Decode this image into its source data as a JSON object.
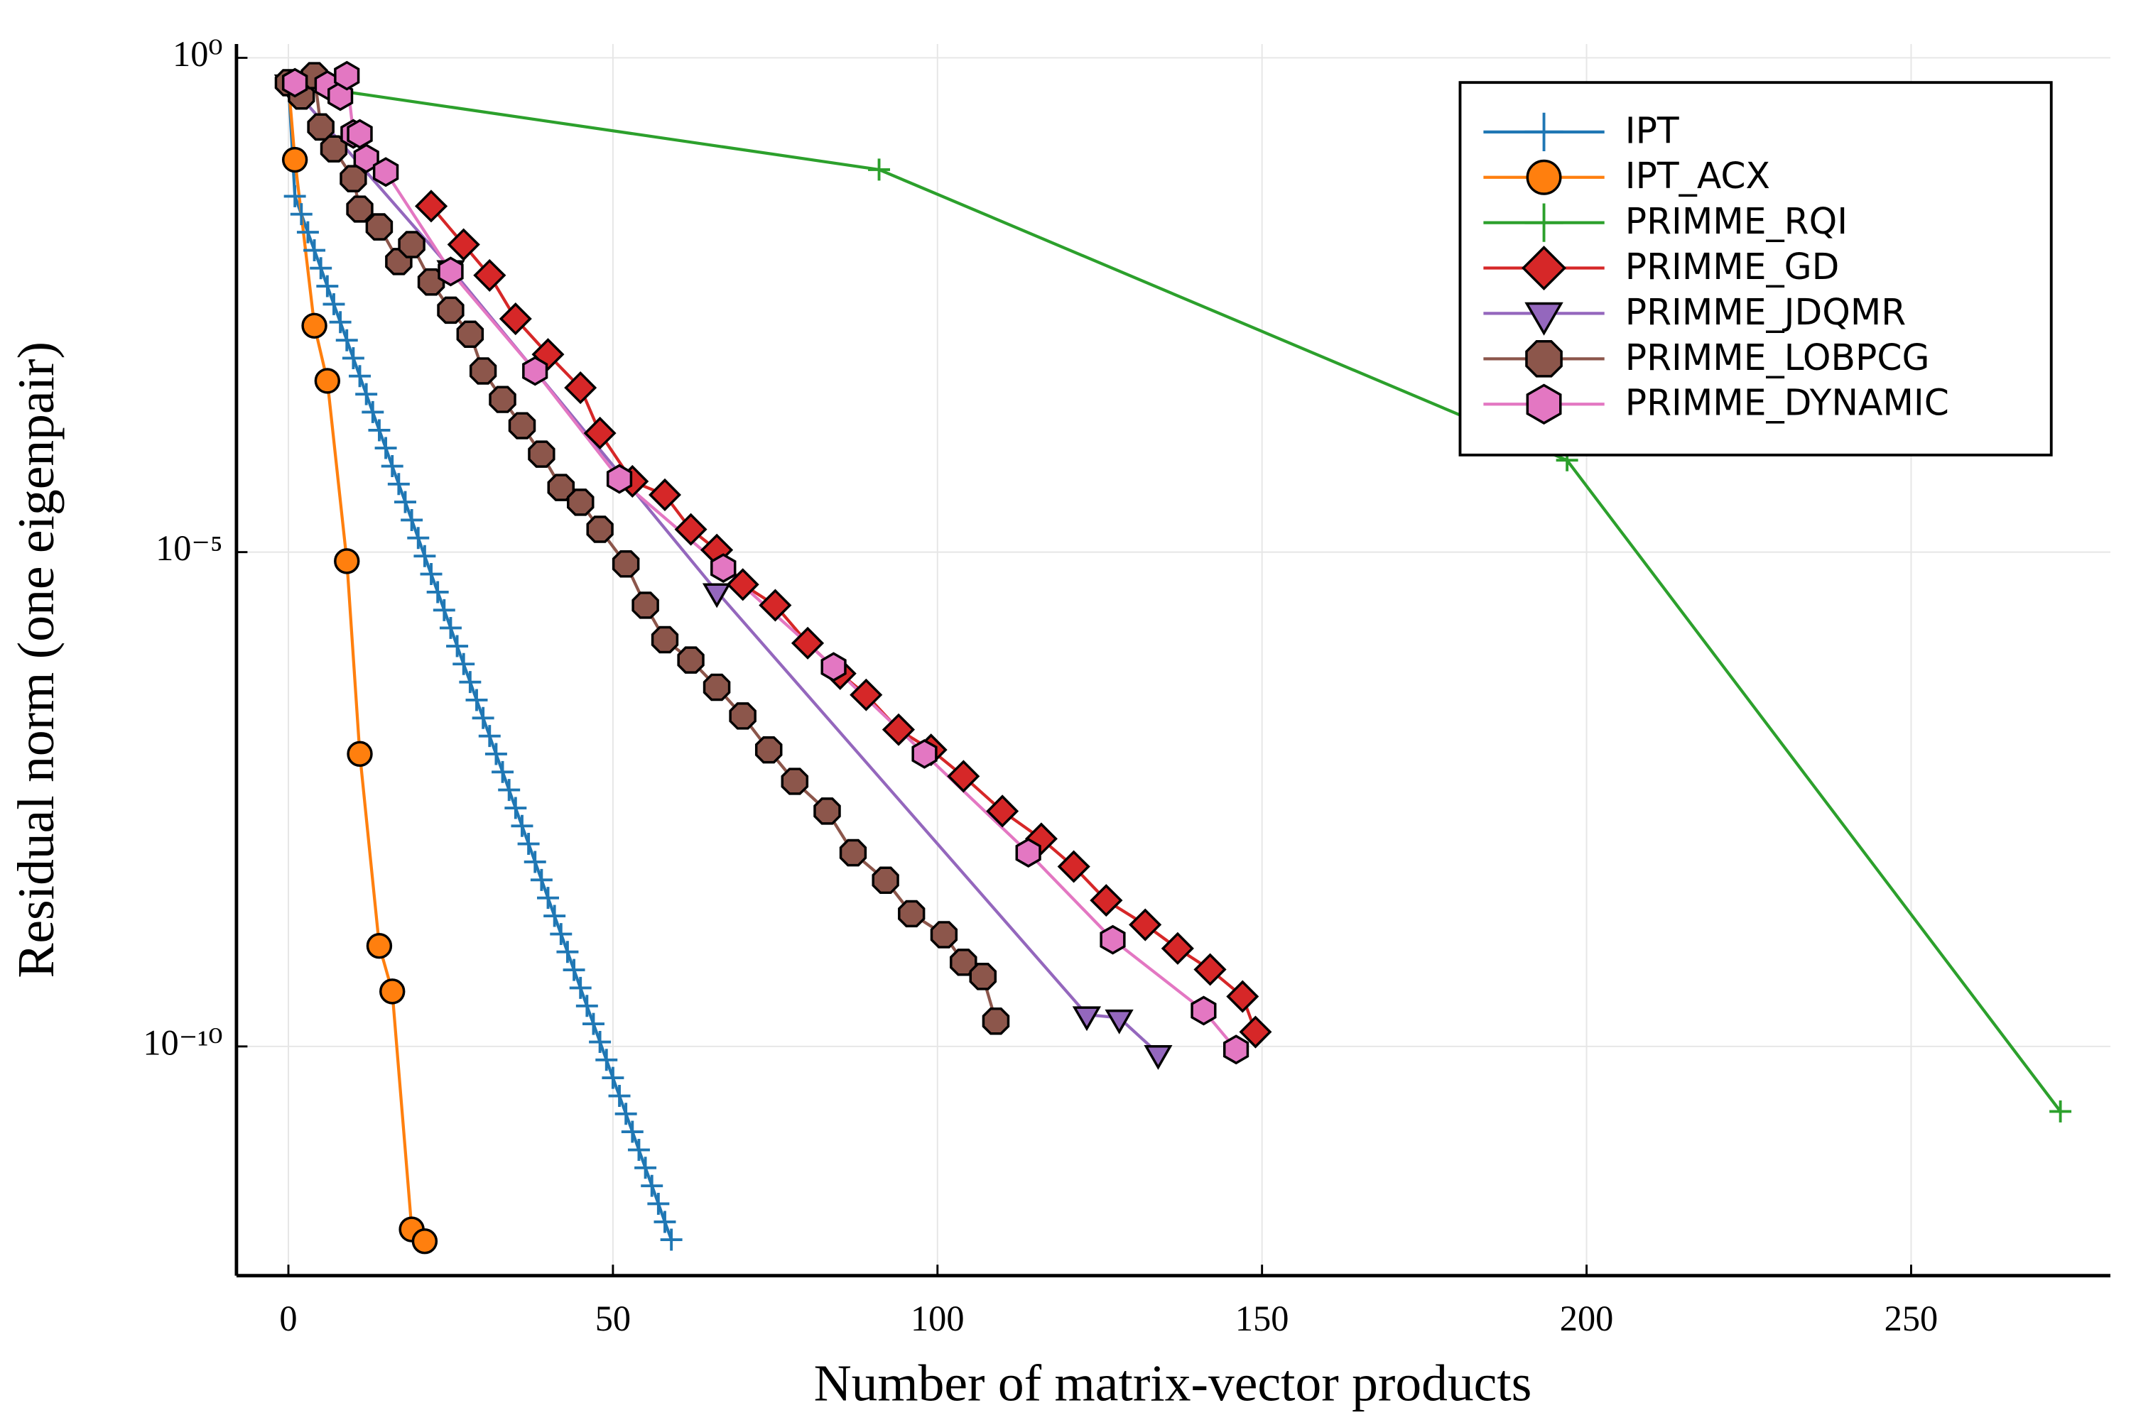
{
  "chart_data": {
    "type": "line",
    "x_label": "Number of matrix-vector products",
    "y_label": "Residual norm (one eigenpair)",
    "log_y": true,
    "grid": true,
    "legend": "top right",
    "xlim": [
      -8,
      280.7
    ],
    "xticks": [
      0,
      50,
      100,
      150,
      200,
      250
    ],
    "ylim": [
      4.8e-13,
      1.38
    ],
    "yticks": [
      {
        "value": 1,
        "label": "10⁰"
      },
      {
        "value": 1e-05,
        "label": "10⁻⁵"
      },
      {
        "value": 1e-10,
        "label": "10⁻¹⁰"
      }
    ],
    "series": [
      {
        "name": "IPT",
        "color": "#1f77b4",
        "marker": "cross",
        "x": [
          0,
          1,
          2,
          3,
          4,
          5,
          6,
          7,
          8,
          9,
          10,
          11,
          12,
          13,
          14,
          15,
          16,
          17,
          18,
          19,
          20,
          21,
          22,
          23,
          24,
          25,
          26,
          27,
          28,
          29,
          30,
          31,
          32,
          33,
          34,
          35,
          36,
          37,
          38,
          39,
          40,
          41,
          42,
          43,
          44,
          45,
          46,
          47,
          48,
          49,
          50,
          51,
          52,
          53,
          54,
          55,
          56,
          57,
          58,
          59
        ],
        "values": [
          0.56,
          0.0398,
          0.0262,
          0.0172,
          0.0113,
          0.00745,
          0.0049,
          0.00322,
          0.00212,
          0.00139,
          0.000916,
          0.000603,
          0.000396,
          0.000261,
          0.000171,
          0.000113,
          7.41e-05,
          4.88e-05,
          3.21e-05,
          2.11e-05,
          1.39e-05,
          9.12e-06,
          6e-06,
          3.94e-06,
          2.59e-06,
          1.71e-06,
          1.12e-06,
          7.38e-07,
          4.85e-07,
          3.19e-07,
          2.1e-07,
          1.38e-07,
          9.08e-08,
          5.97e-08,
          3.93e-08,
          2.58e-08,
          1.7e-08,
          1.12e-08,
          7.35e-09,
          4.83e-09,
          3.18e-09,
          2.09e-09,
          1.37e-09,
          9.04e-10,
          5.94e-10,
          3.91e-10,
          2.57e-10,
          1.69e-10,
          1.11e-10,
          7.31e-11,
          4.81e-11,
          3.16e-11,
          2.08e-11,
          1.37e-11,
          8.99e-12,
          5.92e-12,
          3.89e-12,
          2.56e-12,
          1.68e-12,
          1.11e-12
        ]
      },
      {
        "name": "IPT_ACX",
        "color": "#ff7f0e",
        "marker": "circle",
        "x": [
          0,
          1,
          4,
          6,
          9,
          11,
          14,
          16,
          19,
          21
        ],
        "values": [
          0.56,
          0.093,
          0.00195,
          0.00054,
          8.1e-06,
          9.1e-08,
          1.04e-09,
          3.6e-10,
          1.41e-12,
          1.07e-12
        ]
      },
      {
        "name": "PRIMME_RQI",
        "color": "#2ca02c",
        "marker": "cross",
        "x": [
          0,
          91,
          197,
          273
        ],
        "values": [
          0.55,
          0.074,
          8.5e-05,
          2.2e-11
        ]
      },
      {
        "name": "PRIMME_GD",
        "color": "#d62728",
        "marker": "diamond",
        "x": [
          22,
          27,
          31,
          35,
          40,
          45,
          48,
          53,
          58,
          62,
          66,
          70,
          75,
          80,
          85,
          89,
          94,
          99,
          104,
          110,
          116,
          121,
          126,
          132,
          137,
          142,
          147,
          149
        ],
        "values": [
          0.0316,
          0.0129,
          0.0063,
          0.00229,
          0.001,
          0.00046,
          0.00016,
          5.2e-05,
          3.8e-05,
          1.7e-05,
          1.05e-05,
          4.7e-06,
          2.9e-06,
          1.2e-06,
          5.9e-07,
          3.6e-07,
          1.6e-07,
          1e-07,
          5.4e-08,
          2.4e-08,
          1.26e-08,
          6.6e-09,
          3e-09,
          1.7e-09,
          9.8e-10,
          6e-10,
          3.2e-10,
          1.4e-10
        ]
      },
      {
        "name": "PRIMME_JDQMR",
        "color": "#9467bd",
        "marker": "triangle-down",
        "x": [
          0,
          25,
          66,
          123,
          128,
          134
        ],
        "values": [
          0.56,
          0.0074,
          4e-06,
          2.1e-10,
          1.95e-10,
          8.5e-11
        ]
      },
      {
        "name": "PRIMME_LOBPCG",
        "color": "#8c564b",
        "marker": "octagon",
        "x": [
          0,
          2,
          4,
          5,
          7,
          10,
          11,
          14,
          17,
          19,
          22,
          25,
          28,
          30,
          33,
          36,
          39,
          42,
          45,
          48,
          52,
          55,
          58,
          62,
          66,
          70,
          74,
          78,
          83,
          87,
          92,
          96,
          101,
          104,
          107,
          109
        ],
        "values": [
          0.56,
          0.41,
          0.66,
          0.2,
          0.12,
          0.06,
          0.0295,
          0.0195,
          0.0087,
          0.0129,
          0.0054,
          0.0028,
          0.0016,
          0.00068,
          0.00035,
          0.00019,
          9.8e-05,
          4.5e-05,
          3.2e-05,
          1.7e-05,
          7.6e-06,
          2.9e-06,
          1.3e-06,
          8.1e-07,
          4.3e-07,
          2.2e-07,
          1e-07,
          4.8e-08,
          2.4e-08,
          9.1e-09,
          4.8e-09,
          2.2e-09,
          1.35e-09,
          7.1e-10,
          5.1e-10,
          1.8e-10
        ]
      },
      {
        "name": "PRIMME_DYNAMIC",
        "color": "#e377c2",
        "marker": "hexagon",
        "x": [
          1,
          6,
          8,
          9,
          10,
          11,
          12,
          15,
          25,
          38,
          51,
          67,
          84,
          98,
          114,
          127,
          141,
          146
        ],
        "values": [
          0.56,
          0.53,
          0.41,
          0.66,
          0.17,
          0.17,
          0.096,
          0.07,
          0.0069,
          0.00068,
          5.5e-05,
          6.9e-06,
          6.9e-07,
          9.1e-08,
          9.1e-09,
          1.2e-09,
          2.3e-10,
          9.3e-11
        ]
      }
    ]
  }
}
